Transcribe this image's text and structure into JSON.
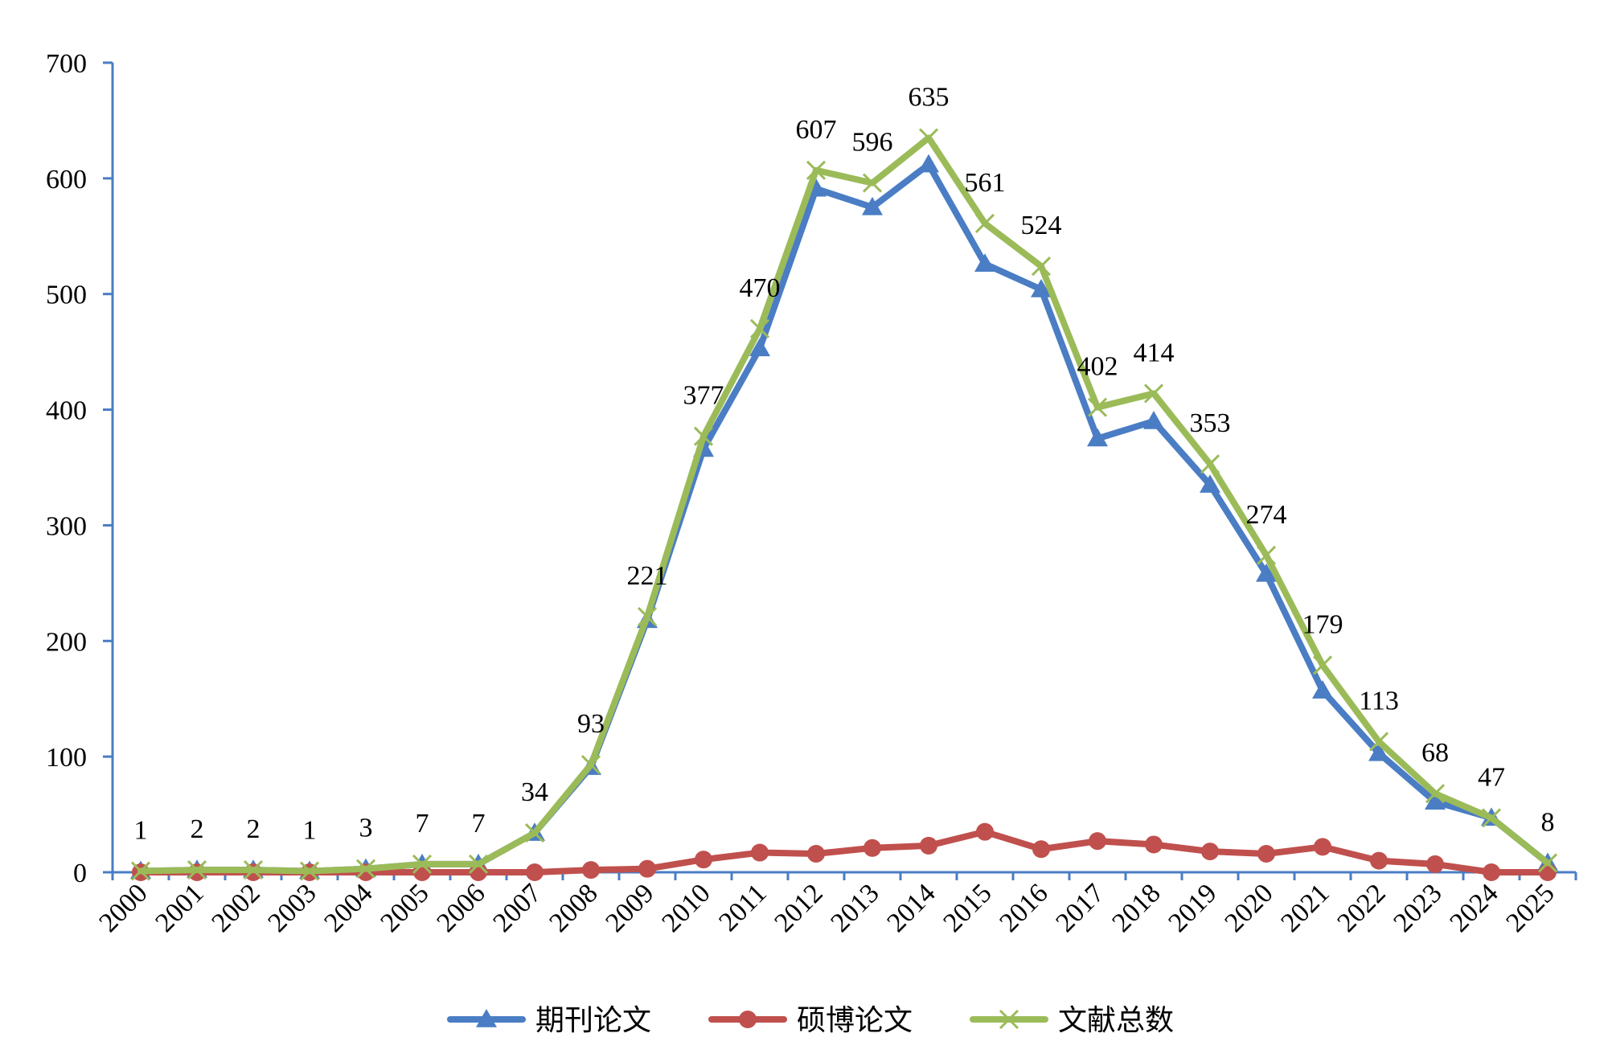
{
  "chart_data": {
    "type": "line",
    "title": "",
    "xlabel": "",
    "ylabel": "",
    "ylim": [
      0,
      700
    ],
    "yticks": [
      0,
      100,
      200,
      300,
      400,
      500,
      600,
      700
    ],
    "grid": false,
    "legend_position": "bottom",
    "categories": [
      "2000",
      "2001",
      "2002",
      "2003",
      "2004",
      "2005",
      "2006",
      "2007",
      "2008",
      "2009",
      "2010",
      "2011",
      "2012",
      "2013",
      "2014",
      "2015",
      "2016",
      "2017",
      "2018",
      "2019",
      "2020",
      "2021",
      "2022",
      "2023",
      "2024",
      "2025"
    ],
    "series": [
      {
        "name": "期刊论文",
        "color": "#4a7dc4",
        "marker": "triangle",
        "values": [
          1,
          2,
          2,
          1,
          3,
          7,
          7,
          34,
          91,
          218,
          366,
          453,
          591,
          575,
          612,
          526,
          504,
          375,
          390,
          335,
          258,
          157,
          103,
          61,
          47,
          8
        ]
      },
      {
        "name": "硕博论文",
        "color": "#c0504d",
        "marker": "circle",
        "values": [
          0,
          0,
          0,
          0,
          0,
          0,
          0,
          0,
          2,
          3,
          11,
          17,
          16,
          21,
          23,
          35,
          20,
          27,
          24,
          18,
          16,
          22,
          10,
          7,
          0,
          0
        ]
      },
      {
        "name": "文献总数",
        "color": "#9bbb59",
        "marker": "x",
        "values": [
          1,
          2,
          2,
          1,
          3,
          7,
          7,
          34,
          93,
          221,
          377,
          470,
          607,
          596,
          635,
          561,
          524,
          402,
          414,
          353,
          274,
          179,
          113,
          68,
          47,
          8
        ]
      }
    ],
    "data_labels": {
      "series": "文献总数",
      "values": [
        "1",
        "2",
        "2",
        "1",
        "3",
        "7",
        "7",
        "34",
        "93",
        "221",
        "377",
        "470",
        "607",
        "596",
        "635",
        "561",
        "524",
        "402",
        "414",
        "353",
        "274",
        "179",
        "113",
        "68",
        "47",
        "8"
      ]
    }
  }
}
